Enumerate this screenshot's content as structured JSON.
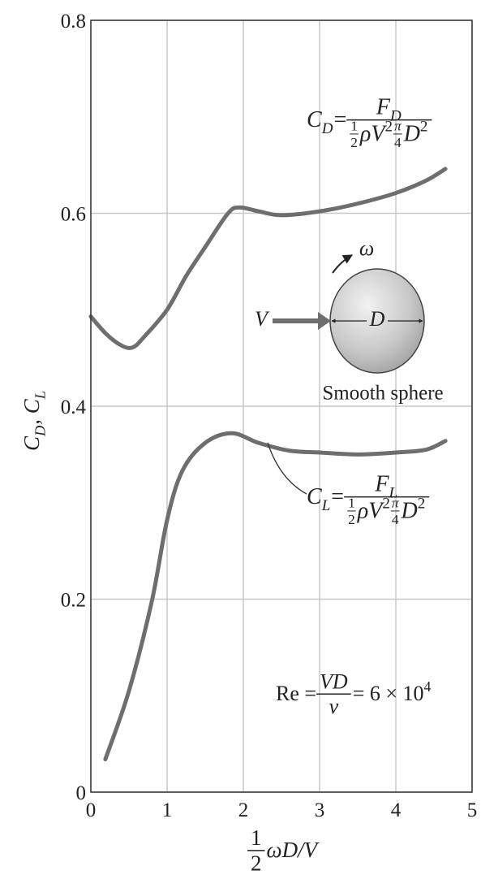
{
  "chart_data": {
    "type": "line",
    "xlabel": [
      {
        "frac": [
          [
            {
              "t": "1"
            }
          ],
          [
            {
              "t": "2"
            }
          ]
        ]
      },
      {
        "t": "ωD/V"
      }
    ],
    "ylabel": [
      {
        "t": "C"
      },
      {
        "sub": "D"
      },
      {
        "t": ", C"
      },
      {
        "sub": "L"
      }
    ],
    "xlim": [
      0,
      5
    ],
    "xticks": [
      0,
      1,
      2,
      3,
      4,
      5
    ],
    "ylim": [
      0,
      0.8
    ],
    "yticks": [
      0,
      0.2,
      0.4,
      0.6,
      0.8
    ],
    "grid": true,
    "series": [
      {
        "color": "#6e6e6e",
        "x": [
          0,
          0.2,
          0.4,
          0.55,
          0.7,
          1.0,
          1.25,
          1.5,
          1.8,
          1.95,
          2.2,
          2.5,
          3.0,
          3.5,
          4.0,
          4.4,
          4.65
        ],
        "values": [
          0.493,
          0.475,
          0.463,
          0.461,
          0.472,
          0.5,
          0.535,
          0.565,
          0.6,
          0.606,
          0.602,
          0.598,
          0.602,
          0.61,
          0.621,
          0.634,
          0.646
        ]
      },
      {
        "color": "#6e6e6e",
        "x": [
          0.19,
          0.5,
          0.8,
          1.0,
          1.2,
          1.5,
          1.85,
          2.2,
          2.6,
          3.0,
          3.5,
          4.0,
          4.4,
          4.65
        ],
        "values": [
          0.034,
          0.105,
          0.198,
          0.282,
          0.333,
          0.362,
          0.372,
          0.362,
          0.354,
          0.352,
          0.35,
          0.352,
          0.355,
          0.364
        ]
      }
    ],
    "annotations": {
      "cd_formula": [
        {
          "t": "C"
        },
        {
          "sub": "D"
        },
        {
          "t": " = "
        },
        {
          "frac": [
            [
              {
                "t": "F"
              },
              {
                "sub": "D"
              }
            ],
            [
              {
                "frac": [
                  [
                    {
                      "t": "1"
                    }
                  ],
                  [
                    {
                      "t": "2"
                    }
                  ]
                ]
              },
              {
                "t": "ρV"
              },
              {
                "sup": "2"
              },
              {
                "frac": [
                  [
                    {
                      "t": "π"
                    }
                  ],
                  [
                    {
                      "t": "4"
                    }
                  ]
                ]
              },
              {
                "t": "D"
              },
              {
                "sup": "2"
              }
            ]
          ]
        }
      ],
      "cl_formula": [
        {
          "t": "C"
        },
        {
          "sub": "L"
        },
        {
          "t": " = "
        },
        {
          "frac": [
            [
              {
                "t": "F"
              },
              {
                "sub": "L"
              }
            ],
            [
              {
                "frac": [
                  [
                    {
                      "t": "1"
                    }
                  ],
                  [
                    {
                      "t": "2"
                    }
                  ]
                ]
              },
              {
                "t": "ρV"
              },
              {
                "sup": "2"
              },
              {
                "frac": [
                  [
                    {
                      "t": "π"
                    }
                  ],
                  [
                    {
                      "t": "4"
                    }
                  ]
                ]
              },
              {
                "t": "D"
              },
              {
                "sup": "2"
              }
            ]
          ]
        }
      ],
      "re_formula": [
        {
          "t": "Re = "
        },
        {
          "frac": [
            [
              {
                "t": "VD"
              }
            ],
            [
              {
                "t": "ν"
              }
            ]
          ]
        },
        {
          "t": " = 6 × 10"
        },
        {
          "sup": "4"
        }
      ],
      "velocity": "V",
      "diameter": "D",
      "omega": "ω",
      "sphere": "Smooth sphere"
    }
  }
}
